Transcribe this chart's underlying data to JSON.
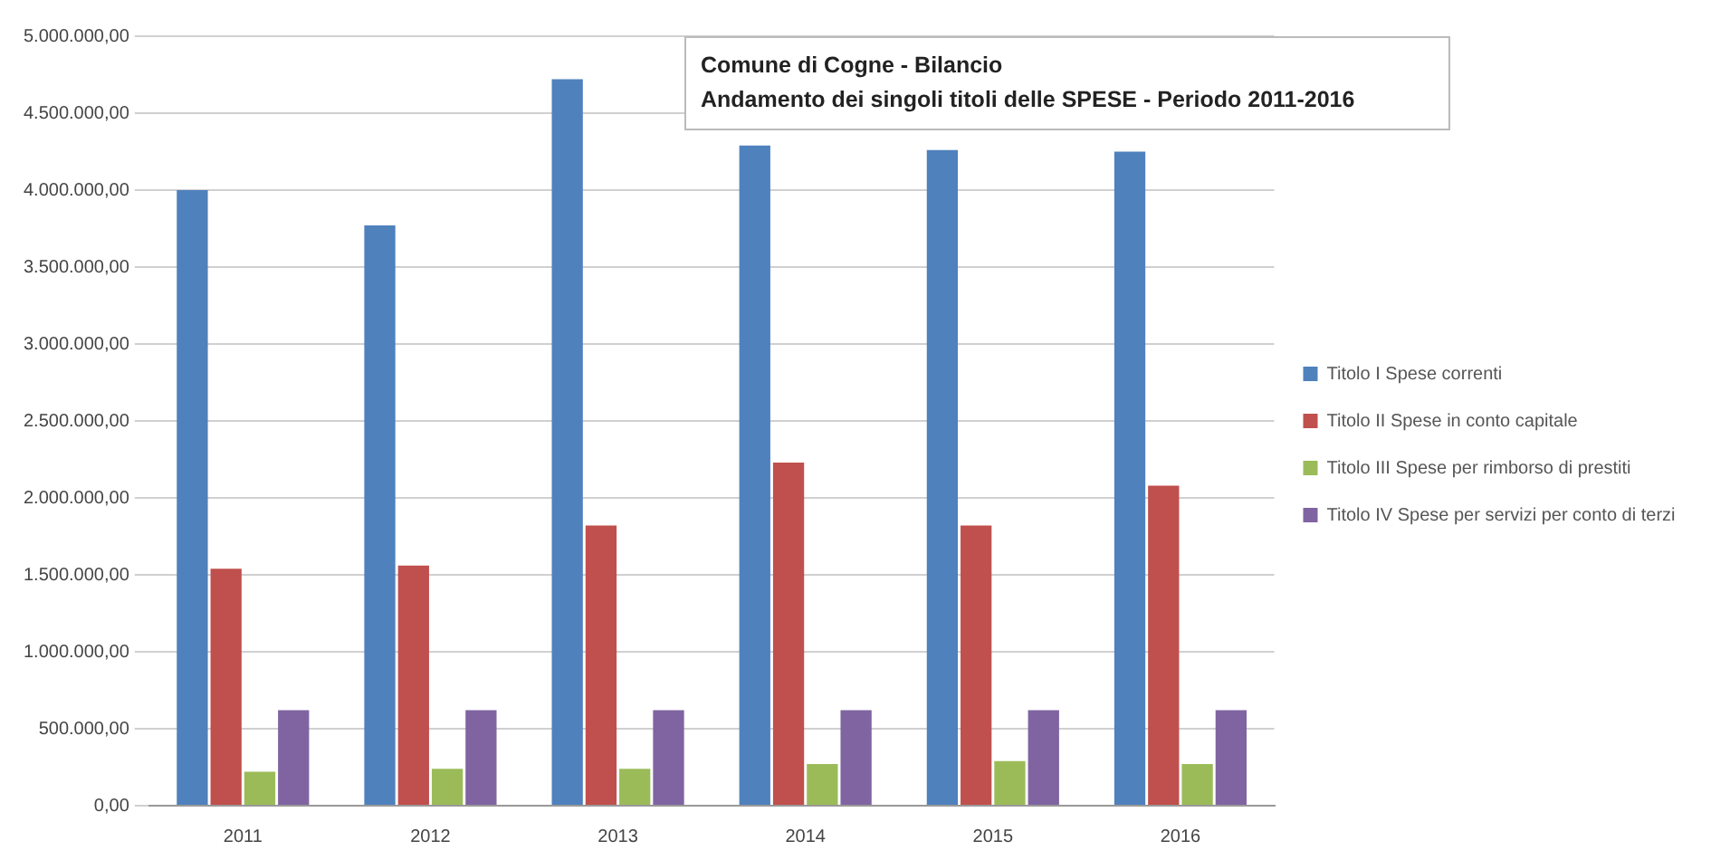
{
  "chart_data": {
    "type": "bar",
    "title": "Comune di Cogne - Bilancio",
    "subtitle": "Andamento dei singoli titoli delle SPESE - Periodo 2011-2016",
    "categories": [
      "2011",
      "2012",
      "2013",
      "2014",
      "2015",
      "2016"
    ],
    "series": [
      {
        "name": "Titolo I Spese correnti",
        "color": "#4f81bd",
        "values": [
          4000000,
          3770000,
          4720000,
          4290000,
          4260000,
          4250000
        ]
      },
      {
        "name": "Titolo II Spese in conto capitale",
        "color": "#c0504d",
        "values": [
          1540000,
          1560000,
          1820000,
          2230000,
          1820000,
          2080000
        ]
      },
      {
        "name": "Titolo III Spese per rimborso di prestiti",
        "color": "#9bbb59",
        "values": [
          220000,
          240000,
          240000,
          270000,
          290000,
          270000
        ]
      },
      {
        "name": "Titolo IV Spese per servizi per conto di terzi",
        "color": "#8064a2",
        "values": [
          620000,
          620000,
          620000,
          620000,
          620000,
          620000
        ]
      }
    ],
    "ylim": [
      0,
      5000000
    ],
    "yticks": [
      {
        "value": 0,
        "label": "0,00"
      },
      {
        "value": 500000,
        "label": "500.000,00"
      },
      {
        "value": 1000000,
        "label": "1.000.000,00"
      },
      {
        "value": 1500000,
        "label": "1.500.000,00"
      },
      {
        "value": 2000000,
        "label": "2.000.000,00"
      },
      {
        "value": 2500000,
        "label": "2.500.000,00"
      },
      {
        "value": 3000000,
        "label": "3.000.000,00"
      },
      {
        "value": 3500000,
        "label": "3.500.000,00"
      },
      {
        "value": 4000000,
        "label": "4.000.000,00"
      },
      {
        "value": 4500000,
        "label": "4.500.000,00"
      },
      {
        "value": 5000000,
        "label": "5.000.000,00"
      }
    ],
    "grid": "y",
    "legend": "right"
  }
}
